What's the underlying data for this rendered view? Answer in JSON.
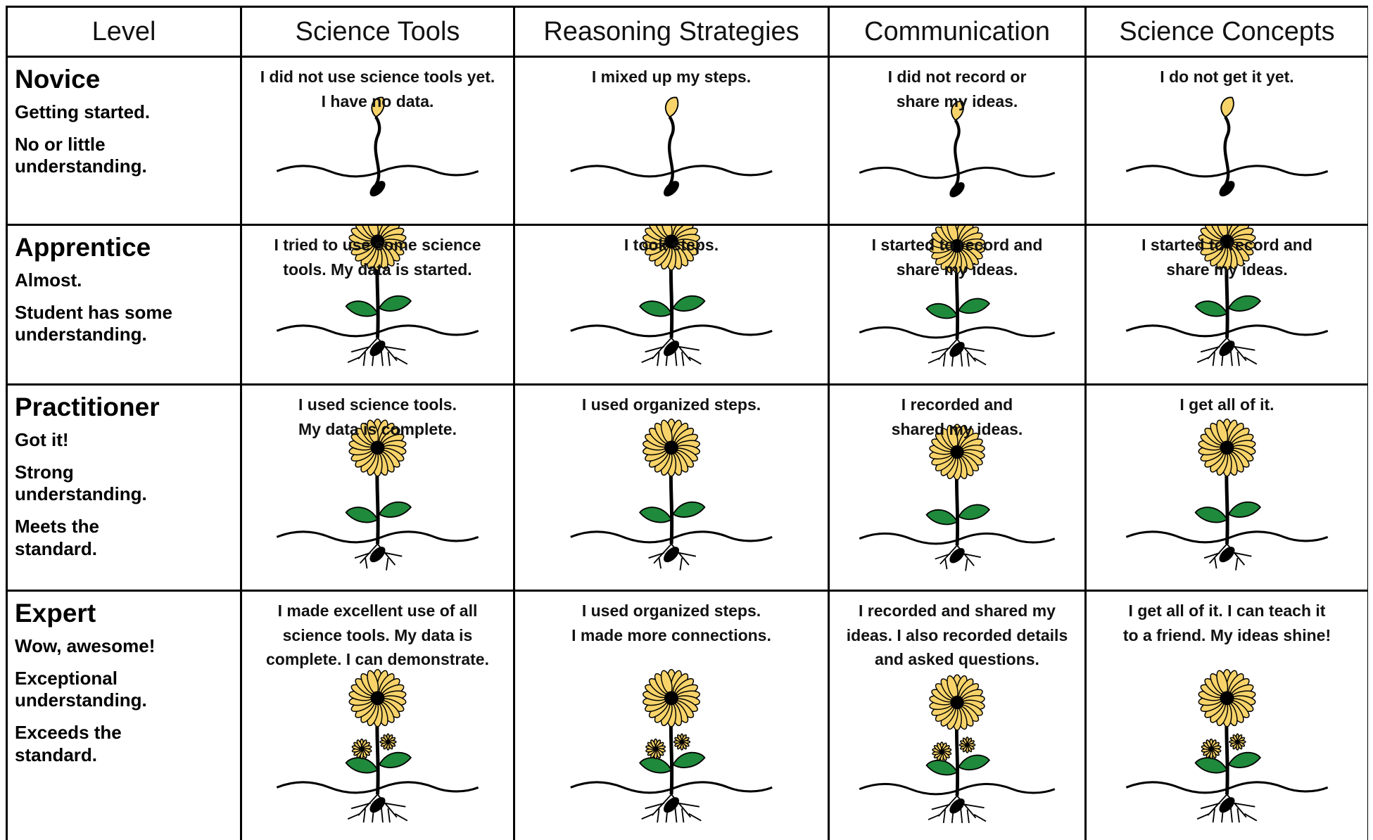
{
  "header": [
    "Level",
    "Science Tools",
    "Reasoning Strategies",
    "Communication",
    "Science Concepts"
  ],
  "rows": [
    {
      "level": "Novice",
      "descriptors": [
        [
          "Getting started."
        ],
        [
          "No or little",
          "understanding."
        ]
      ],
      "cells": [
        [
          "I did not use science tools yet.",
          "I have no data."
        ],
        [
          "I mixed up my steps."
        ],
        [
          "I did not record or",
          "share my ideas."
        ],
        [
          "I do not get it yet."
        ]
      ]
    },
    {
      "level": "Apprentice",
      "descriptors": [
        [
          "Almost."
        ],
        [
          "Student has some",
          "understanding."
        ]
      ],
      "cells": [
        [
          "I tried to use some science",
          "tools. My data is started."
        ],
        [
          "I took steps."
        ],
        [
          "I started to record and",
          "share my ideas."
        ],
        [
          "I started to record and",
          "share my ideas."
        ]
      ]
    },
    {
      "level": "Practitioner",
      "descriptors": [
        [
          "Got it!"
        ],
        [
          "Strong",
          "understanding."
        ],
        [
          "Meets the",
          "standard."
        ]
      ],
      "cells": [
        [
          "I used science tools.",
          "My data is complete."
        ],
        [
          "I used organized steps."
        ],
        [
          "I recorded and",
          "shared my ideas."
        ],
        [
          "I get all of it."
        ]
      ]
    },
    {
      "level": "Expert",
      "descriptors": [
        [
          "Wow, awesome!"
        ],
        [
          "Exceptional",
          "understanding."
        ],
        [
          "Exceeds the",
          "standard."
        ]
      ],
      "cells": [
        [
          "I made excellent use of all",
          "science tools.  My data is",
          "complete. I can demonstrate."
        ],
        [
          "I used organized steps.",
          "I made more connections."
        ],
        [
          "I recorded and shared my",
          "ideas. I also recorded details",
          "and asked questions."
        ],
        [
          "I get all of it. I can teach it",
          "to a friend. My ideas shine!"
        ]
      ]
    }
  ]
}
